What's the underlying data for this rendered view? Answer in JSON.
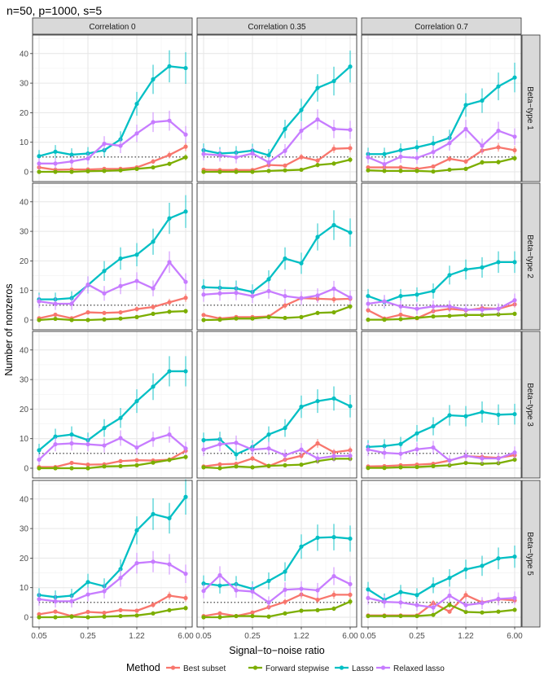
{
  "chart_data": {
    "type": "line",
    "title": "n=50, p=1000, s=5",
    "xlabel": "Signal−to−noise ratio",
    "ylabel": "Number of nonzeros",
    "x": [
      0.05,
      0.09,
      0.14,
      0.25,
      0.42,
      0.71,
      1.22,
      2.07,
      3.52,
      6.0
    ],
    "xscale": "log",
    "x_ticks": [
      "0.05",
      "0.25",
      "1.22",
      "6.00"
    ],
    "y_ticks": [
      "0",
      "10",
      "20",
      "30",
      "40"
    ],
    "ylim": [
      -2,
      46
    ],
    "grid": true,
    "reference_line": {
      "y": 5,
      "style": "dotted",
      "color": "#000000"
    },
    "columns": [
      "Correlation 0",
      "Correlation 0.35",
      "Correlation 0.7"
    ],
    "rows": [
      "Beta−type 1",
      "Beta−type 2",
      "Beta−type 3",
      "Beta−type 5"
    ],
    "legend": {
      "title": "Method",
      "position": "bottom",
      "entries": [
        "Best subset",
        "Forward stepwise",
        "Lasso",
        "Relaxed lasso"
      ]
    },
    "series_colors": {
      "Best subset": "#F8766D",
      "Forward stepwise": "#7CAE00",
      "Lasso": "#00BFC4",
      "Relaxed lasso": "#C77CFF"
    },
    "panels": [
      {
        "row": "Beta−type 1",
        "column": "Correlation 0",
        "series": {
          "Best subset": [
            1.5,
            0.7,
            0.8,
            0.8,
            1.0,
            1.0,
            1.5,
            3.5,
            5.7,
            8.5
          ],
          "Forward stepwise": [
            0,
            0,
            0,
            0.2,
            0.3,
            0.5,
            1.0,
            1.5,
            2.7,
            4.9
          ],
          "Lasso": [
            5.3,
            6.8,
            5.8,
            6.2,
            7.3,
            11.0,
            23.0,
            31.3,
            35.7,
            35.1
          ],
          "Relaxed lasso": [
            2.8,
            2.8,
            3.5,
            4.5,
            9.5,
            8.8,
            13.0,
            16.8,
            17.3,
            12.6
          ]
        }
      },
      {
        "row": "Beta−type 1",
        "column": "Correlation 0.35",
        "series": {
          "Best subset": [
            0.7,
            0.6,
            0.6,
            0.6,
            2.3,
            2.1,
            5.0,
            3.8,
            7.8,
            8.0
          ],
          "Forward stepwise": [
            0,
            0,
            0,
            0,
            0.3,
            0.5,
            0.7,
            2.3,
            2.8,
            4.1
          ],
          "Lasso": [
            7.3,
            6.2,
            6.5,
            7.2,
            5.6,
            14.5,
            20.9,
            28.4,
            30.7,
            35.6
          ],
          "Relaxed lasso": [
            6.0,
            5.6,
            4.9,
            6.2,
            3.2,
            7.1,
            13.9,
            17.7,
            14.5,
            14.2
          ]
        }
      },
      {
        "row": "Beta−type 1",
        "column": "Correlation 0.7",
        "series": {
          "Best subset": [
            1.5,
            1.5,
            1.5,
            1.0,
            1.8,
            4.4,
            3.5,
            7.2,
            8.3,
            7.3
          ],
          "Forward stepwise": [
            0.5,
            0.3,
            0.3,
            0.3,
            0.1,
            0.7,
            1.0,
            3.2,
            3.3,
            4.6
          ],
          "Lasso": [
            6.0,
            6.0,
            7.3,
            8.3,
            9.6,
            11.5,
            22.6,
            24.1,
            28.9,
            31.9
          ],
          "Relaxed lasso": [
            4.9,
            2.6,
            5.1,
            4.7,
            6.7,
            9.7,
            14.5,
            8.8,
            13.9,
            11.9
          ]
        }
      },
      {
        "row": "Beta−type 2",
        "column": "Correlation 0",
        "series": {
          "Best subset": [
            0.6,
            1.8,
            0.6,
            2.6,
            2.4,
            2.6,
            3.7,
            4.4,
            6.0,
            7.5
          ],
          "Forward stepwise": [
            0,
            0.4,
            0,
            0,
            0.2,
            0.5,
            1.0,
            2.1,
            2.8,
            3.0
          ],
          "Lasso": [
            7.0,
            7.0,
            7.4,
            11.8,
            16.6,
            20.8,
            22.1,
            26.5,
            34.4,
            36.7
          ],
          "Relaxed lasso": [
            6.3,
            5.5,
            5.5,
            12.0,
            9.0,
            11.5,
            13.2,
            10.7,
            19.6,
            12.9
          ]
        }
      },
      {
        "row": "Beta−type 2",
        "column": "Correlation 0.35",
        "series": {
          "Best subset": [
            1.7,
            0.5,
            1.0,
            1.0,
            1.2,
            4.9,
            7.4,
            7.2,
            7.0,
            7.2
          ],
          "Forward stepwise": [
            0,
            0.1,
            0.5,
            0.5,
            1.0,
            0.7,
            1.0,
            2.4,
            2.6,
            4.6
          ],
          "Lasso": [
            11.1,
            10.9,
            10.7,
            9.5,
            13.8,
            20.8,
            19.2,
            28.1,
            32.1,
            29.6
          ],
          "Relaxed lasso": [
            8.6,
            9.0,
            9.2,
            8.1,
            9.8,
            8.1,
            7.4,
            8.3,
            10.6,
            7.6
          ]
        }
      },
      {
        "row": "Beta−type 2",
        "column": "Correlation 0.7",
        "series": {
          "Best subset": [
            3.3,
            0.5,
            1.8,
            0.6,
            3.0,
            3.8,
            3.3,
            4.0,
            3.8,
            5.3
          ],
          "Forward stepwise": [
            0.1,
            0.1,
            0.3,
            0.7,
            1.2,
            1.4,
            1.7,
            1.7,
            1.9,
            2.1
          ],
          "Lasso": [
            8.1,
            6.1,
            8.1,
            8.6,
            9.8,
            15.2,
            17.1,
            17.8,
            19.6,
            19.6
          ],
          "Relaxed lasso": [
            5.5,
            6.3,
            4.6,
            3.8,
            4.6,
            4.6,
            3.5,
            3.5,
            3.8,
            6.7
          ]
        }
      },
      {
        "row": "Beta−type 3",
        "column": "Correlation 0",
        "series": {
          "Best subset": [
            0.4,
            0.4,
            1.8,
            1.2,
            1.3,
            2.4,
            2.7,
            2.6,
            2.9,
            5.9
          ],
          "Forward stepwise": [
            0,
            0,
            0,
            0,
            0.6,
            0.7,
            1.0,
            1.9,
            2.8,
            3.8
          ],
          "Lasso": [
            6.1,
            10.7,
            11.4,
            9.5,
            13.6,
            17.0,
            22.7,
            27.6,
            32.8,
            32.8
          ],
          "Relaxed lasso": [
            2.9,
            8.1,
            8.4,
            8.1,
            7.7,
            10.2,
            7.0,
            9.8,
            11.4,
            6.7
          ]
        }
      },
      {
        "row": "Beta−type 3",
        "column": "Correlation 0.35",
        "series": {
          "Best subset": [
            0.6,
            1.3,
            1.5,
            3.3,
            0.7,
            2.9,
            4.2,
            8.4,
            5.4,
            6.1
          ],
          "Forward stepwise": [
            0.3,
            0,
            0.6,
            0.3,
            0.8,
            1.0,
            1.2,
            2.4,
            3.2,
            3.2
          ],
          "Lasso": [
            9.5,
            9.8,
            4.7,
            7.2,
            11.4,
            13.6,
            20.8,
            22.7,
            23.6,
            21.0
          ],
          "Relaxed lasso": [
            6.3,
            8.1,
            8.6,
            6.3,
            6.7,
            4.4,
            6.3,
            3.3,
            4.1,
            4.2
          ]
        }
      },
      {
        "row": "Beta−type 3",
        "column": "Correlation 0.7",
        "series": {
          "Best subset": [
            0.6,
            0.7,
            1.0,
            1.2,
            1.5,
            2.6,
            4.1,
            3.8,
            3.5,
            4.4
          ],
          "Forward stepwise": [
            0.1,
            0.1,
            0.3,
            0.4,
            0.7,
            1.0,
            1.8,
            1.5,
            1.7,
            2.9
          ],
          "Lasso": [
            7.2,
            7.5,
            8.2,
            11.8,
            14.2,
            17.9,
            17.6,
            19.0,
            18.1,
            18.3
          ],
          "Relaxed lasso": [
            6.3,
            5.2,
            4.9,
            6.4,
            7.0,
            2.6,
            4.2,
            3.3,
            3.3,
            5.3
          ]
        }
      },
      {
        "row": "Beta−type 5",
        "column": "Correlation 0",
        "series": {
          "Best subset": [
            1.0,
            1.9,
            0.4,
            1.8,
            1.5,
            2.4,
            2.2,
            4.2,
            7.3,
            6.5
          ],
          "Forward stepwise": [
            0,
            0,
            0.2,
            0,
            0.2,
            0.4,
            0.6,
            1.3,
            2.4,
            3.1
          ],
          "Lasso": [
            7.5,
            6.8,
            7.3,
            11.9,
            10.5,
            16.3,
            29.4,
            34.9,
            33.5,
            40.7
          ],
          "Relaxed lasso": [
            6.1,
            5.4,
            5.4,
            7.7,
            8.8,
            13.3,
            18.3,
            18.8,
            17.9,
            14.7
          ]
        }
      },
      {
        "row": "Beta−type 5",
        "column": "Correlation 0.35",
        "series": {
          "Best subset": [
            0.4,
            1.3,
            0.4,
            1.6,
            3.4,
            5.2,
            7.7,
            5.9,
            7.6,
            7.6
          ],
          "Forward stepwise": [
            0,
            0,
            0.4,
            0.4,
            0.2,
            1.3,
            2.2,
            2.4,
            2.9,
            5.3
          ],
          "Lasso": [
            11.4,
            10.7,
            11.2,
            9.6,
            12.3,
            15.4,
            23.9,
            26.9,
            27.1,
            26.6
          ],
          "Relaxed lasso": [
            8.9,
            14.2,
            9.1,
            8.7,
            5.0,
            9.3,
            9.6,
            9.1,
            13.9,
            11.2
          ]
        }
      },
      {
        "row": "Beta−type 5",
        "column": "Correlation 0.7",
        "series": {
          "Best subset": [
            0.6,
            0.6,
            0.6,
            0.6,
            4.8,
            1.9,
            7.5,
            5.0,
            6.1,
            5.7
          ],
          "Forward stepwise": [
            0.4,
            0.4,
            0.4,
            0.4,
            0.8,
            4.2,
            1.8,
            1.6,
            1.9,
            2.5
          ],
          "Lasso": [
            9.4,
            5.9,
            8.5,
            7.5,
            10.8,
            13.3,
            16.2,
            17.4,
            19.9,
            20.5
          ],
          "Relaxed lasso": [
            6.5,
            5.2,
            5.0,
            4.1,
            3.3,
            7.3,
            4.1,
            4.8,
            6.2,
            6.5
          ]
        }
      }
    ]
  }
}
